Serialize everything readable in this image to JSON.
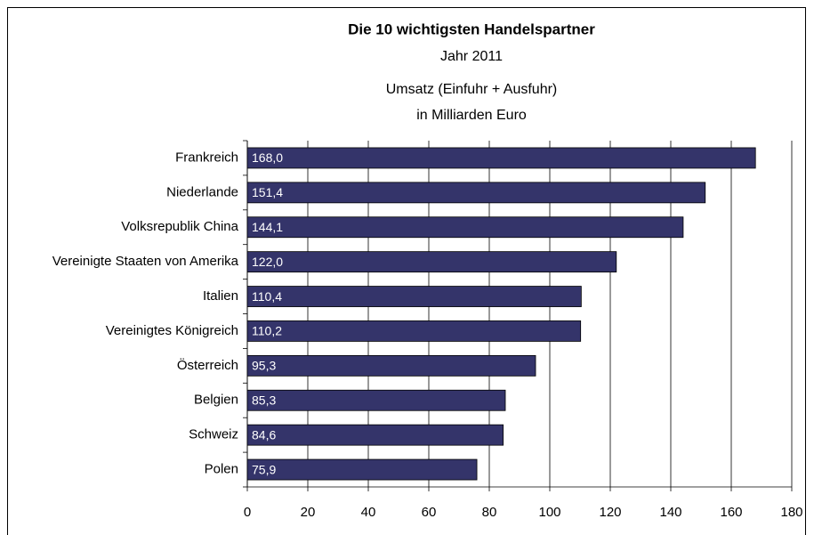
{
  "chart_data": {
    "type": "bar",
    "orientation": "horizontal",
    "title": "Die 10 wichtigsten Handelspartner",
    "subtitle": "Jahr 2011",
    "axis_title": [
      "Umsatz (Einfuhr + Ausfuhr)",
      "in Milliarden Euro"
    ],
    "categories": [
      "Frankreich",
      "Niederlande",
      "Volksrepublik China",
      "Vereinigte Staaten von Amerika",
      "Italien",
      "Vereinigtes Königreich",
      "Österreich",
      "Belgien",
      "Schweiz",
      "Polen"
    ],
    "values": [
      168.0,
      151.4,
      144.1,
      122.0,
      110.4,
      110.2,
      95.3,
      85.3,
      84.6,
      75.9
    ],
    "value_labels": [
      "168,0",
      "151,4",
      "144,1",
      "122,0",
      "110,4",
      "110,2",
      "95,3",
      "85,3",
      "84,6",
      "75,9"
    ],
    "color": "#34346a",
    "xlim": [
      0,
      180
    ],
    "xticks": [
      0,
      20,
      40,
      60,
      80,
      100,
      120,
      140,
      160,
      180
    ],
    "grid": true
  }
}
